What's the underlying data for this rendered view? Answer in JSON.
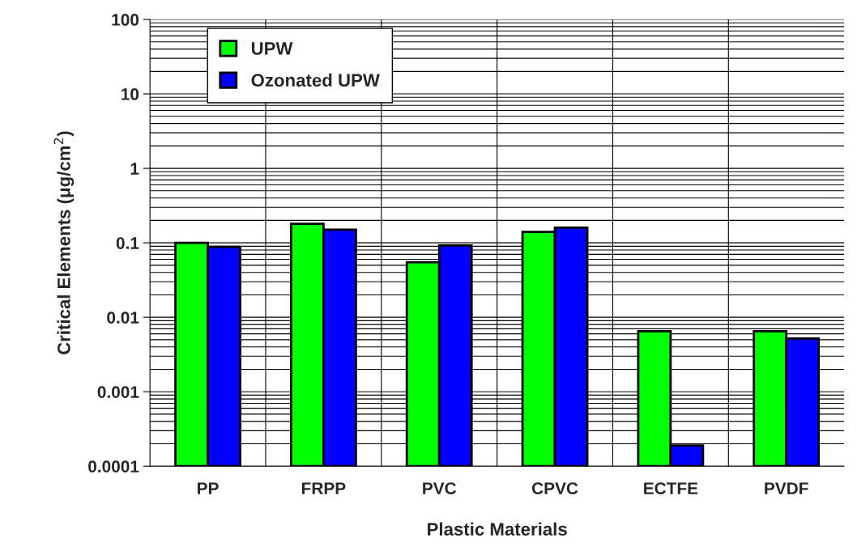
{
  "chart_data": {
    "type": "bar",
    "xlabel": "Plastic Materials",
    "ylabel": "Critical Elements (μg/cm$^{2}$)",
    "categories": [
      "PP",
      "FRPP",
      "PVC",
      "CPVC",
      "ECTFE",
      "PVDF"
    ],
    "series": [
      {
        "name": "UPW",
        "color": "#00ff00",
        "values": [
          0.1,
          0.18,
          0.055,
          0.14,
          0.0065,
          0.0065
        ]
      },
      {
        "name": "Ozonated UPW",
        "color": "#0000ff",
        "values": [
          0.088,
          0.15,
          0.092,
          0.16,
          0.00019,
          0.0052
        ]
      }
    ],
    "log": "y",
    "ylim": [
      0.0001,
      100
    ],
    "yticks": [
      0.0001,
      0.001,
      0.01,
      0.1,
      1,
      10,
      100
    ],
    "grid": true,
    "legend": "top left"
  }
}
